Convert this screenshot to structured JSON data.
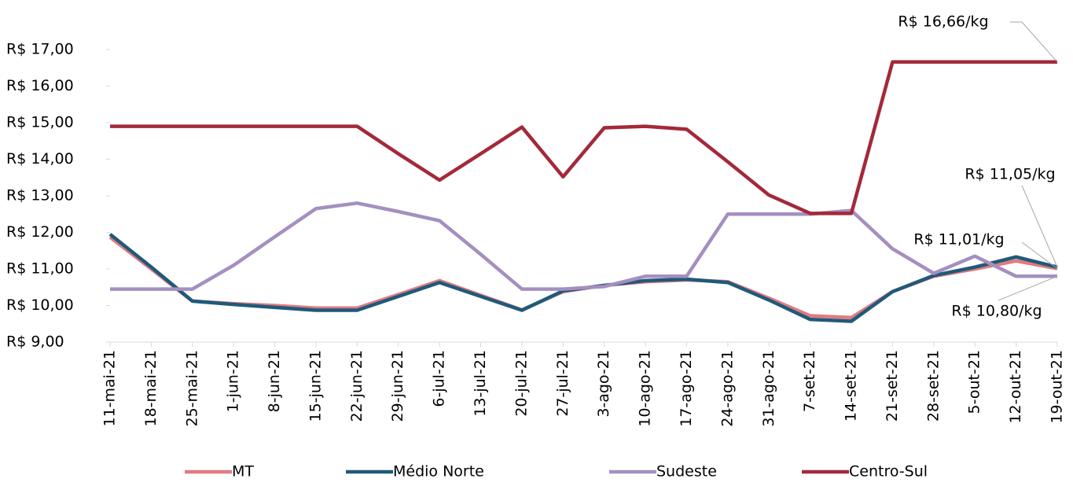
{
  "chart_data": {
    "type": "line",
    "categories": [
      "11-mai-21",
      "18-mai-21",
      "25-mai-21",
      "1-jun-21",
      "8-jun-21",
      "15-jun-21",
      "22-jun-21",
      "29-jun-21",
      "6-jul-21",
      "13-jul-21",
      "20-jul-21",
      "27-jul-21",
      "3-ago-21",
      "10-ago-21",
      "17-ago-21",
      "24-ago-21",
      "31-ago-21",
      "7-set-21",
      "14-set-21",
      "21-set-21",
      "28-set-21",
      "5-out-21",
      "12-out-21",
      "19-out-21"
    ],
    "series": [
      {
        "name": "MT",
        "color": "#e07b80",
        "values": [
          11.87,
          11.0,
          10.12,
          10.05,
          10.0,
          9.93,
          9.93,
          10.3,
          10.68,
          10.28,
          9.88,
          10.38,
          10.55,
          10.65,
          10.7,
          10.65,
          10.2,
          9.72,
          9.67,
          10.38,
          10.8,
          11.0,
          11.22,
          11.01
        ]
      },
      {
        "name": "Médio Norte",
        "color": "#1f5a7a",
        "values": [
          11.95,
          11.05,
          10.12,
          10.03,
          9.95,
          9.87,
          9.87,
          10.25,
          10.63,
          10.25,
          9.87,
          10.4,
          10.55,
          10.68,
          10.72,
          10.63,
          10.15,
          9.62,
          9.57,
          10.38,
          10.82,
          11.05,
          11.33,
          11.05
        ]
      },
      {
        "name": "Sudeste",
        "color": "#a58fc0",
        "values": [
          10.45,
          10.45,
          10.45,
          11.1,
          11.88,
          12.65,
          12.8,
          12.57,
          12.32,
          11.4,
          10.45,
          10.45,
          10.52,
          10.8,
          10.8,
          12.5,
          12.5,
          12.5,
          12.6,
          11.55,
          10.88,
          11.35,
          10.8,
          10.8
        ]
      },
      {
        "name": "Centro-Sul",
        "color": "#a3293a",
        "values": [
          14.9,
          14.9,
          14.9,
          14.9,
          14.9,
          14.9,
          14.9,
          14.15,
          13.43,
          14.15,
          14.88,
          13.52,
          14.86,
          14.9,
          14.82,
          13.93,
          13.02,
          12.52,
          12.52,
          16.66,
          16.66,
          16.66,
          16.66,
          16.66
        ]
      }
    ],
    "ylim": [
      9,
      17
    ],
    "yticks": [
      {
        "value": 9,
        "label": "R$ 9,00"
      },
      {
        "value": 10,
        "label": "R$ 10,00"
      },
      {
        "value": 11,
        "label": "R$ 11,00"
      },
      {
        "value": 12,
        "label": "R$ 12,00"
      },
      {
        "value": 13,
        "label": "R$ 13,00"
      },
      {
        "value": 14,
        "label": "R$ 14,00"
      },
      {
        "value": 15,
        "label": "R$ 15,00"
      },
      {
        "value": 16,
        "label": "R$ 16,00"
      },
      {
        "value": 17,
        "label": "R$ 17,00"
      }
    ],
    "annotations": [
      "R$ 16,66/kg",
      "R$ 11,05/kg",
      "R$ 11,01/kg",
      "R$ 10,80/kg"
    ],
    "legend": "bottom"
  }
}
